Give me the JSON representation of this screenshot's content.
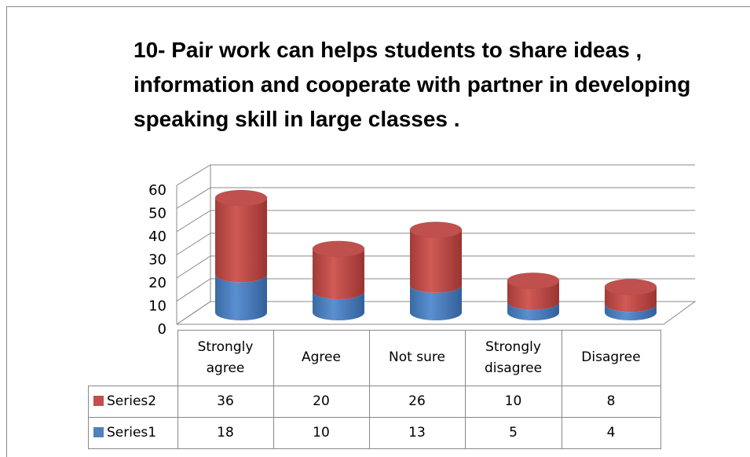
{
  "chart_data": {
    "type": "bar",
    "stacked": true,
    "three_d": true,
    "title": "10- Pair work can helps students to share  ideas , information and cooperate with partner in developing speaking skill in large classes .",
    "categories": [
      "Strongly agree",
      "Agree",
      "Not sure",
      "Strongly disagree",
      "Disagree"
    ],
    "series": [
      {
        "name": "Series1",
        "color": "#4f81bd",
        "values": [
          18,
          10,
          13,
          5,
          4
        ]
      },
      {
        "name": "Series2",
        "color": "#c0504d",
        "values": [
          36,
          20,
          26,
          10,
          8
        ]
      }
    ],
    "ylim": [
      0,
      60
    ],
    "yticks": [
      0,
      10,
      20,
      30,
      40,
      50,
      60
    ],
    "grid": true,
    "data_table": true
  }
}
